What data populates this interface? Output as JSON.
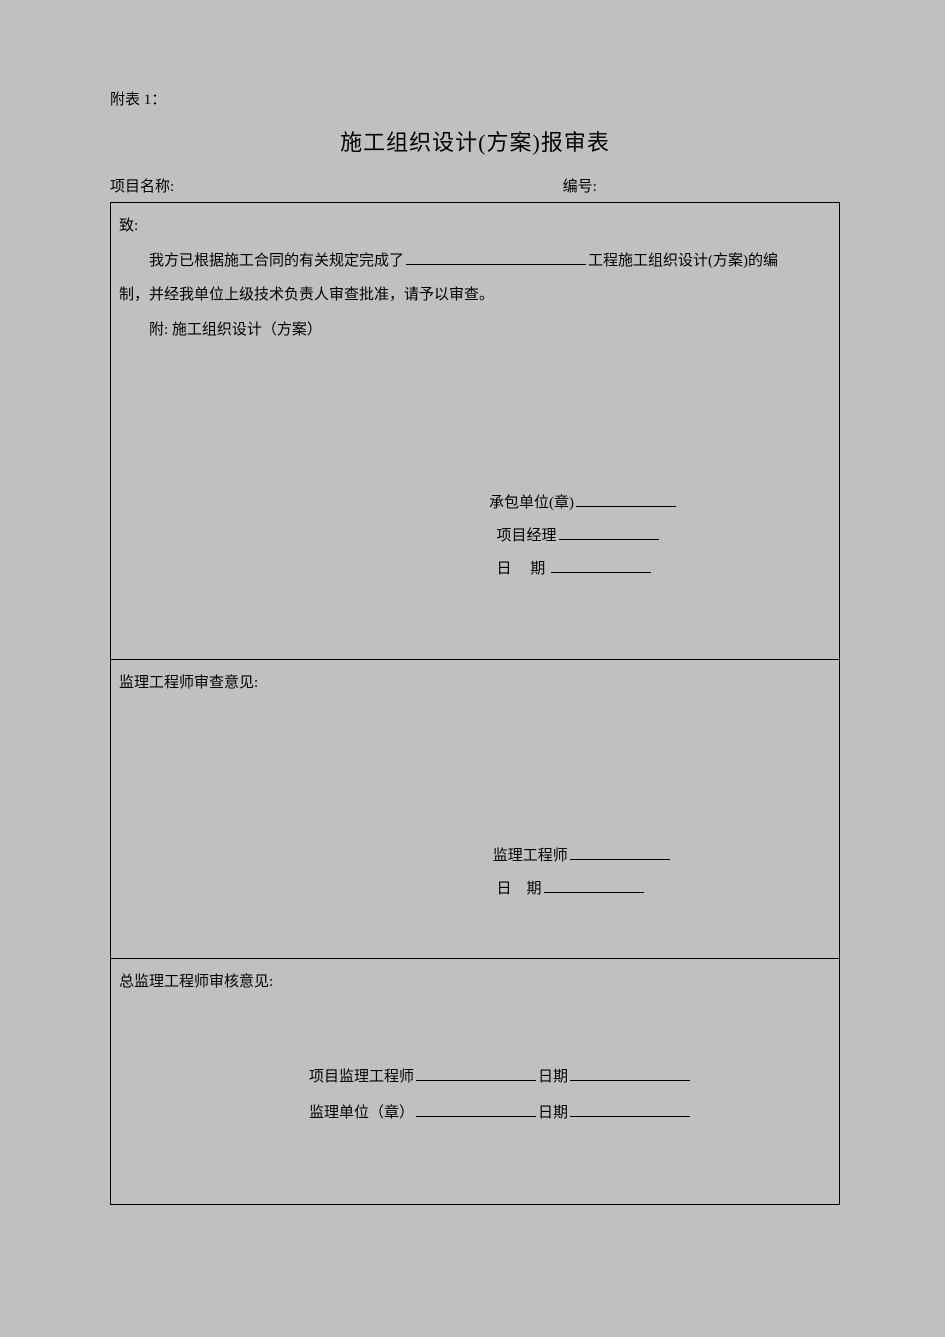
{
  "annex_label": "附表 1：",
  "title": "施工组织设计(方案)报审表",
  "header": {
    "project_label": "项目名称:",
    "number_label": "编号:"
  },
  "section1": {
    "to_label": "致:",
    "body_pre": "我方已根据施工合同的有关规定完成了",
    "body_post": "工程施工组织设计(方案)的编",
    "body_line2": "制，并经我单位上级技术负责人审查批准，请予以审查。",
    "attach_label": "附: 施工组织设计（方案）",
    "sig_unit_label": "承包单位(章)",
    "sig_pm_label": "项目经理",
    "sig_date_label_a": "日",
    "sig_date_label_b": "期"
  },
  "section2": {
    "heading": "监理工程师审查意见:",
    "sig_eng_label": "监理工程师",
    "sig_date_label_a": "日",
    "sig_date_label_b": "期"
  },
  "section3": {
    "heading": "总监理工程师审核意见:",
    "row1_label": "项目监理工程师",
    "row1_date": "日期",
    "row2_label": "监理单位（章）",
    "row2_date": "日期"
  }
}
